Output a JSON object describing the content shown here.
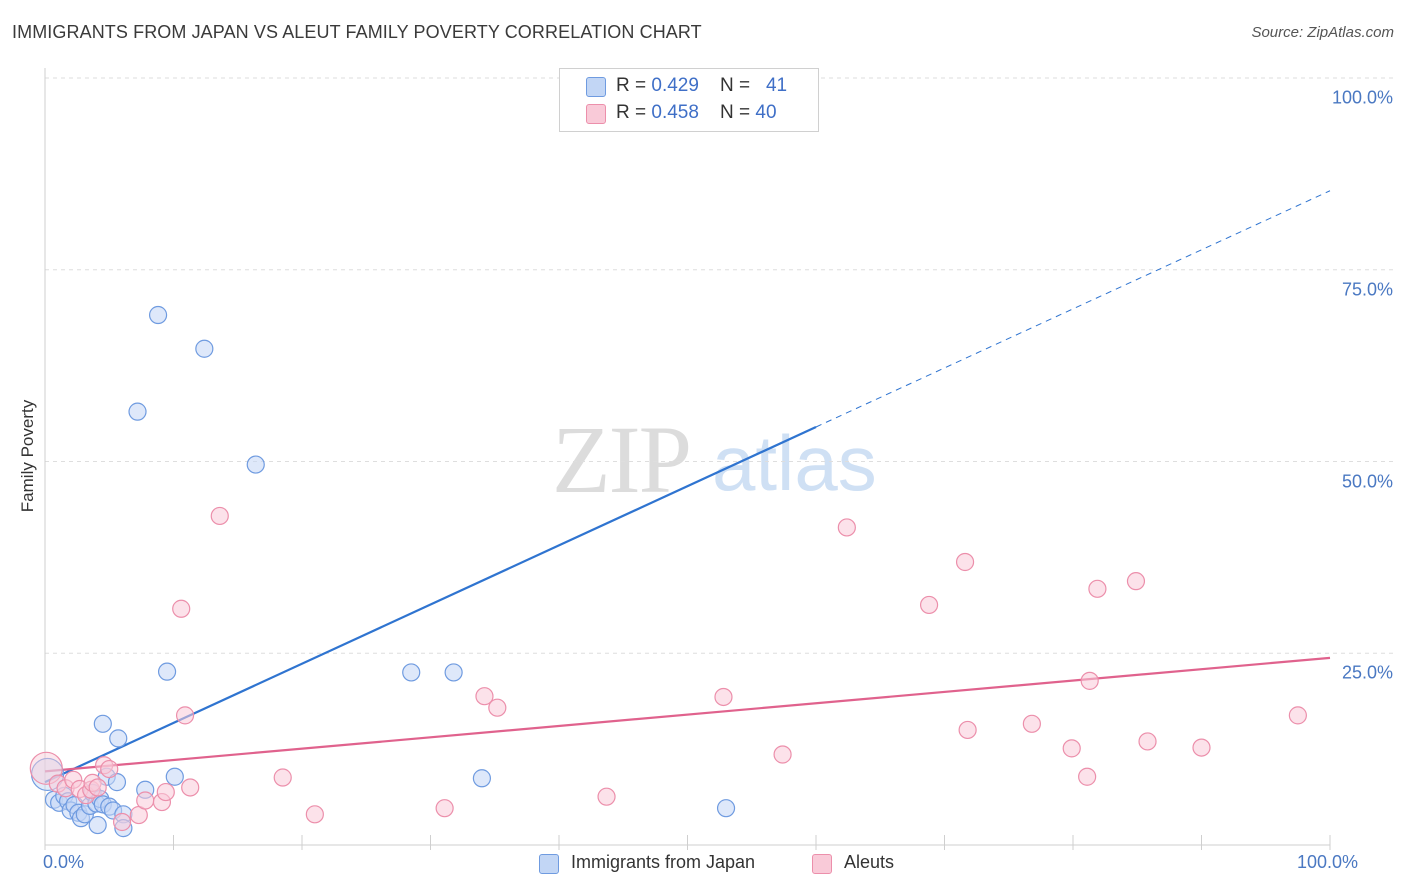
{
  "title": "IMMIGRANTS FROM JAPAN VS ALEUT FAMILY POVERTY CORRELATION CHART",
  "source": "Source: ZipAtlas.com",
  "watermark": {
    "zip": "ZIP",
    "atlas": "atlas"
  },
  "stats": [
    {
      "r_label": "R = ",
      "r_value": "0.429",
      "n_label": "N = ",
      "n_value": "41",
      "color": "#6f9be0",
      "fill": "#c2d6f5"
    },
    {
      "r_label": "R = ",
      "r_value": "0.458",
      "n_label": "N = ",
      "n_value": "40",
      "color": "#ec8fab",
      "fill": "#f9cad8"
    }
  ],
  "legend": [
    {
      "label": "Immigrants from Japan",
      "color": "#6f9be0",
      "fill": "#c2d6f5"
    },
    {
      "label": "Aleuts",
      "color": "#ec8fab",
      "fill": "#f9cad8"
    }
  ],
  "chart_data": {
    "type": "scatter",
    "title": "IMMIGRANTS FROM JAPAN VS ALEUT FAMILY POVERTY CORRELATION CHART",
    "xlabel": "",
    "ylabel": "Family Poverty",
    "xlim": [
      0,
      100
    ],
    "ylim": [
      0,
      100
    ],
    "x_tick_labels": [
      {
        "value": 0,
        "label": "0.0%"
      },
      {
        "value": 100,
        "label": "100.0%"
      }
    ],
    "y_tick_labels": [
      {
        "value": 25,
        "label": "25.0%"
      },
      {
        "value": 50,
        "label": "50.0%"
      },
      {
        "value": 75,
        "label": "75.0%"
      },
      {
        "value": 100,
        "label": "100.0%"
      }
    ],
    "grid": true,
    "legend_position": "bottom-center",
    "series": [
      {
        "name": "Immigrants from Japan",
        "color": "#6f9be0",
        "fill": "#c2d6f5",
        "trend_line_color": "#2f74d0",
        "trend": {
          "x_start": 0,
          "y_start": 8.2,
          "x_end": 60,
          "y_end": 54.5,
          "dashed_to_x": 100,
          "dashed_to_y": 85.3
        },
        "points": [
          {
            "x": 0.2,
            "y": 9.2,
            "big": true
          },
          {
            "x": 0.7,
            "y": 5.9
          },
          {
            "x": 1.1,
            "y": 5.5
          },
          {
            "x": 1.5,
            "y": 6.4
          },
          {
            "x": 1.8,
            "y": 5.7
          },
          {
            "x": 2.0,
            "y": 4.5
          },
          {
            "x": 2.3,
            "y": 5.2
          },
          {
            "x": 2.6,
            "y": 4.2
          },
          {
            "x": 2.8,
            "y": 3.5
          },
          {
            "x": 3.1,
            "y": 4.0
          },
          {
            "x": 3.5,
            "y": 5.1
          },
          {
            "x": 3.7,
            "y": 6.8
          },
          {
            "x": 4.0,
            "y": 5.4
          },
          {
            "x": 4.1,
            "y": 2.6
          },
          {
            "x": 4.3,
            "y": 6.0
          },
          {
            "x": 4.5,
            "y": 5.3
          },
          {
            "x": 4.5,
            "y": 15.8
          },
          {
            "x": 4.8,
            "y": 8.9
          },
          {
            "x": 5.0,
            "y": 5.0
          },
          {
            "x": 5.3,
            "y": 4.5
          },
          {
            "x": 5.6,
            "y": 8.2
          },
          {
            "x": 5.7,
            "y": 13.9
          },
          {
            "x": 6.1,
            "y": 4.0
          },
          {
            "x": 6.1,
            "y": 2.2
          },
          {
            "x": 7.2,
            "y": 56.5
          },
          {
            "x": 7.8,
            "y": 7.2
          },
          {
            "x": 8.8,
            "y": 69.1
          },
          {
            "x": 9.5,
            "y": 22.6
          },
          {
            "x": 10.1,
            "y": 8.9
          },
          {
            "x": 12.4,
            "y": 64.7
          },
          {
            "x": 16.4,
            "y": 49.6
          },
          {
            "x": 28.5,
            "y": 22.5
          },
          {
            "x": 31.8,
            "y": 22.5
          },
          {
            "x": 34.0,
            "y": 8.7
          },
          {
            "x": 53.0,
            "y": 4.8
          }
        ]
      },
      {
        "name": "Aleuts",
        "color": "#ec8fab",
        "fill": "#f9cad8",
        "trend_line_color": "#e0628d",
        "trend": {
          "x_start": 0,
          "y_start": 9.6,
          "x_end": 100,
          "y_end": 24.4
        },
        "points": [
          {
            "x": 0.1,
            "y": 10.0,
            "big": true
          },
          {
            "x": 1.0,
            "y": 8.0
          },
          {
            "x": 1.6,
            "y": 7.4
          },
          {
            "x": 2.2,
            "y": 8.5
          },
          {
            "x": 2.7,
            "y": 7.3
          },
          {
            "x": 3.2,
            "y": 6.5
          },
          {
            "x": 3.6,
            "y": 7.2
          },
          {
            "x": 3.7,
            "y": 8.1
          },
          {
            "x": 4.1,
            "y": 7.5
          },
          {
            "x": 4.6,
            "y": 10.4
          },
          {
            "x": 5.0,
            "y": 9.9
          },
          {
            "x": 6.0,
            "y": 3.0
          },
          {
            "x": 7.3,
            "y": 3.9
          },
          {
            "x": 7.8,
            "y": 5.8
          },
          {
            "x": 9.1,
            "y": 5.6
          },
          {
            "x": 9.4,
            "y": 6.9
          },
          {
            "x": 10.6,
            "y": 30.8
          },
          {
            "x": 10.9,
            "y": 16.9
          },
          {
            "x": 11.3,
            "y": 7.5
          },
          {
            "x": 13.6,
            "y": 42.9
          },
          {
            "x": 18.5,
            "y": 8.8
          },
          {
            "x": 21.0,
            "y": 4.0
          },
          {
            "x": 31.1,
            "y": 4.8
          },
          {
            "x": 34.2,
            "y": 19.4
          },
          {
            "x": 35.2,
            "y": 17.9
          },
          {
            "x": 43.7,
            "y": 6.3
          },
          {
            "x": 52.8,
            "y": 19.3
          },
          {
            "x": 57.4,
            "y": 11.8
          },
          {
            "x": 62.4,
            "y": 41.4
          },
          {
            "x": 68.8,
            "y": 31.3
          },
          {
            "x": 71.6,
            "y": 36.9
          },
          {
            "x": 71.8,
            "y": 15.0
          },
          {
            "x": 76.8,
            "y": 15.8
          },
          {
            "x": 79.9,
            "y": 12.6
          },
          {
            "x": 81.1,
            "y": 8.9
          },
          {
            "x": 81.3,
            "y": 21.4
          },
          {
            "x": 81.9,
            "y": 33.4
          },
          {
            "x": 84.9,
            "y": 34.4
          },
          {
            "x": 85.8,
            "y": 13.5
          },
          {
            "x": 90.0,
            "y": 12.7
          },
          {
            "x": 97.5,
            "y": 16.9
          }
        ]
      }
    ]
  }
}
